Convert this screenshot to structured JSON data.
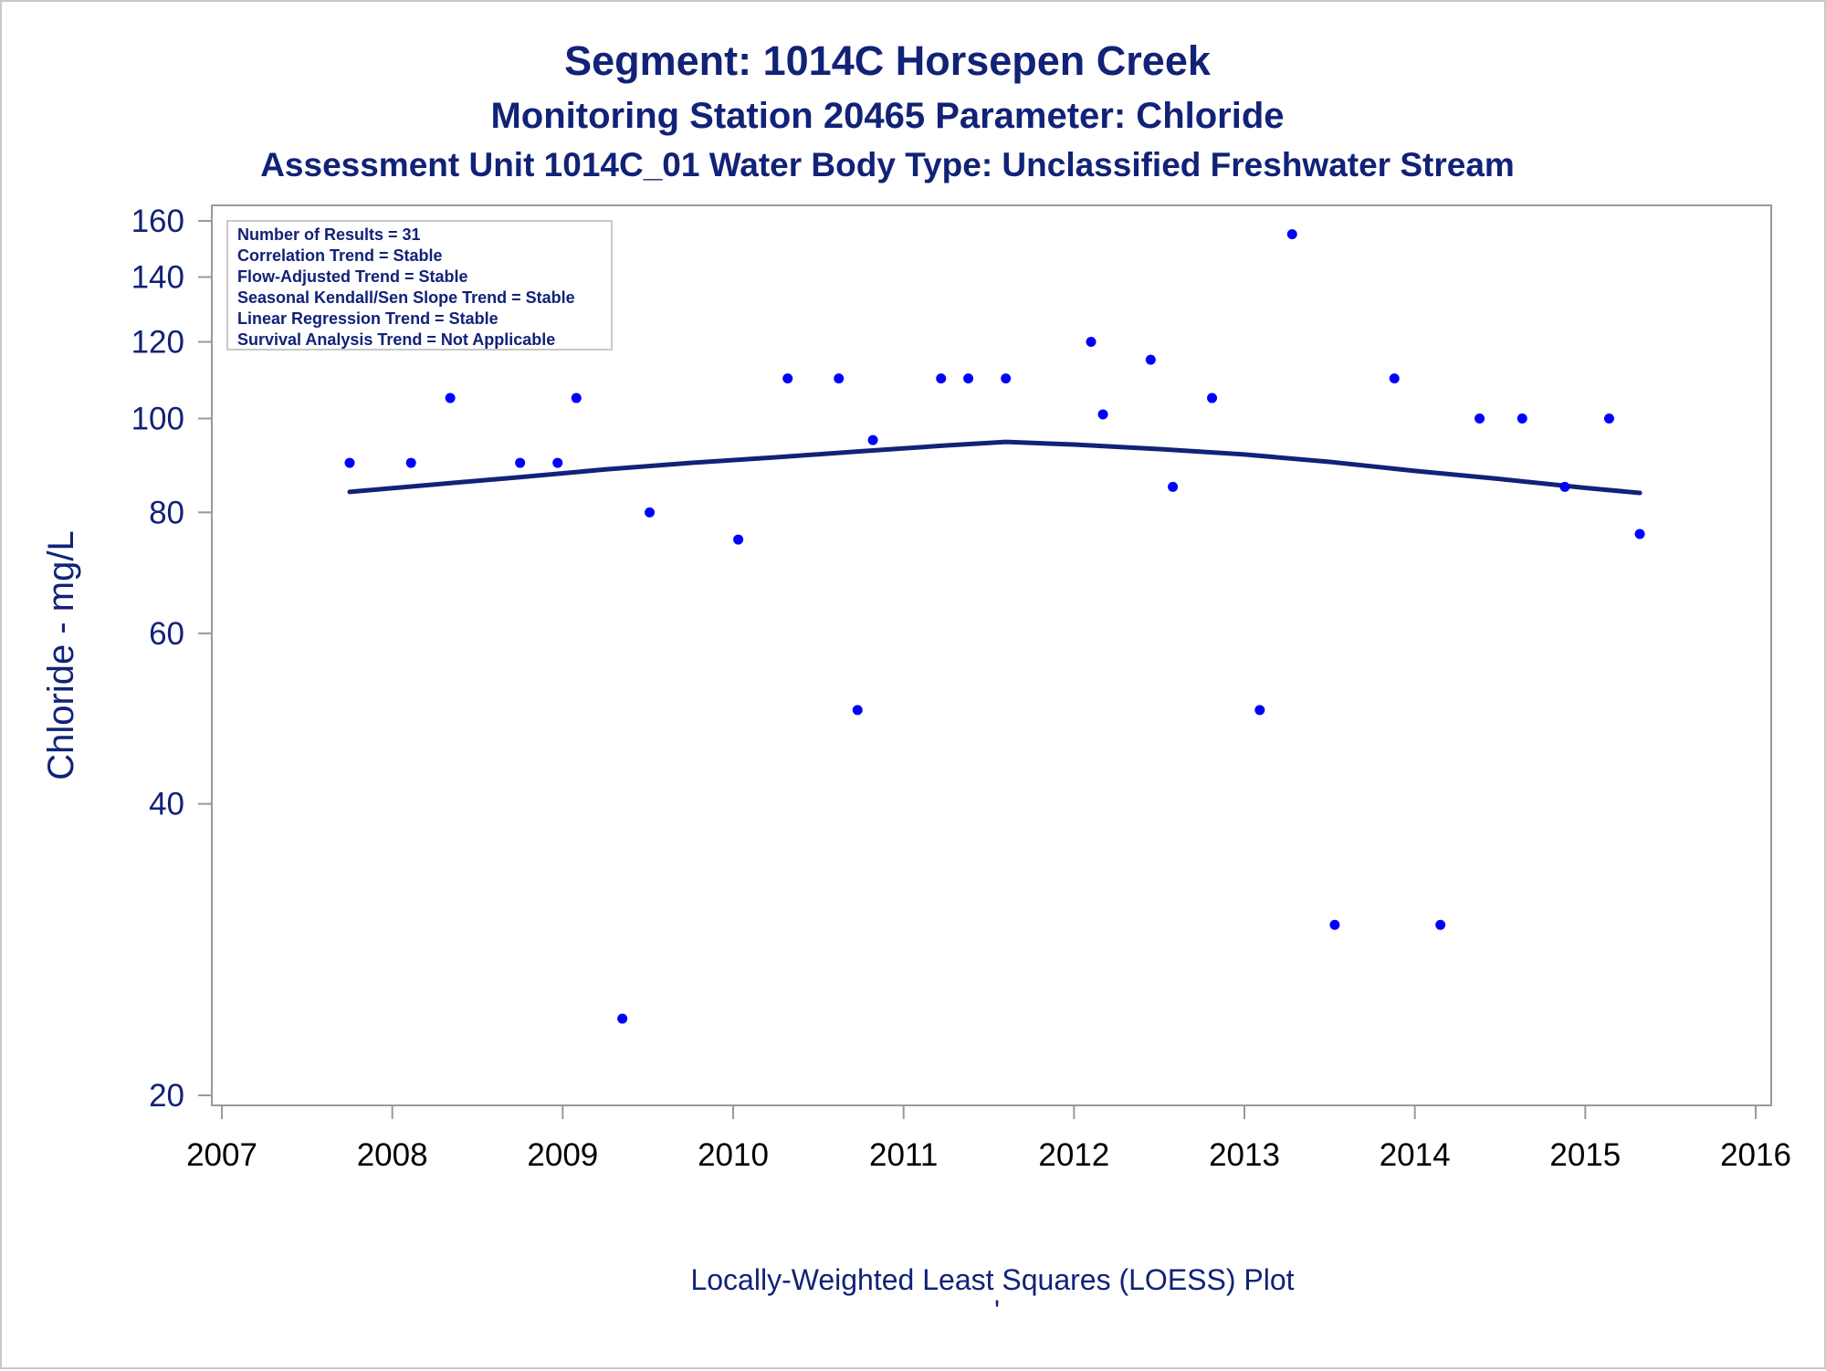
{
  "chart_data": {
    "type": "scatter",
    "title": "Segment: 1014C  Horsepen Creek",
    "subtitle": "Monitoring Station 20465 Parameter: Chloride",
    "subtitle2": "Assessment Unit 1014C_01   Water Body Type: Unclassified Freshwater Stream",
    "xlabel": "",
    "ylabel": "Chloride - mg/L",
    "footnote": "Locally-Weighted Least Squares (LOESS) Plot",
    "footnote_mark": "'",
    "y_scale": "log",
    "xlim": [
      2007,
      2016
    ],
    "ylim": [
      20,
      165
    ],
    "x_ticks": [
      2007,
      2008,
      2009,
      2010,
      2011,
      2012,
      2013,
      2014,
      2015,
      2016
    ],
    "y_ticks": [
      20,
      40,
      60,
      80,
      100,
      120,
      140,
      160
    ],
    "grid": false,
    "inset_placement": "top-left",
    "inset_lines": [
      "Number of Results = 31",
      "Correlation Trend = Stable",
      "Flow-Adjusted Trend = Stable",
      "Seasonal Kendall/Sen Slope Trend = Stable",
      "Linear Regression Trend = Stable",
      "Survival Analysis Trend = Not Applicable"
    ],
    "points": {
      "x": [
        2007.75,
        2008.11,
        2008.34,
        2008.75,
        2008.97,
        2009.08,
        2009.35,
        2009.51,
        2010.03,
        2010.32,
        2010.62,
        2010.73,
        2010.82,
        2011.22,
        2011.38,
        2011.6,
        2012.1,
        2012.17,
        2012.45,
        2012.58,
        2012.81,
        2013.09,
        2013.28,
        2013.53,
        2013.88,
        2014.15,
        2014.38,
        2014.63,
        2014.88,
        2015.14,
        2015.32
      ],
      "y": [
        90,
        90,
        105,
        90,
        90,
        105,
        24,
        80,
        75,
        110,
        110,
        50,
        95,
        110,
        110,
        110,
        120,
        101,
        115,
        85,
        105,
        50,
        155,
        30,
        110,
        30,
        100,
        100,
        85,
        100,
        76
      ]
    },
    "loess": {
      "x": [
        2007.75,
        2008.25,
        2008.75,
        2009.25,
        2009.75,
        2010.25,
        2010.75,
        2011.25,
        2011.6,
        2012.0,
        2012.5,
        2013.0,
        2013.5,
        2014.0,
        2014.5,
        2015.0,
        2015.32
      ],
      "y": [
        84,
        85.5,
        87,
        88.6,
        90,
        91.2,
        92.5,
        93.8,
        94.6,
        94.0,
        93.0,
        91.8,
        90.2,
        88.3,
        86.6,
        84.8,
        83.8
      ]
    },
    "colors": {
      "points": "#0000ff",
      "loess": "#112277",
      "text": "#112277",
      "axis": "#999999",
      "inset_border": "#c8c8c8"
    }
  }
}
